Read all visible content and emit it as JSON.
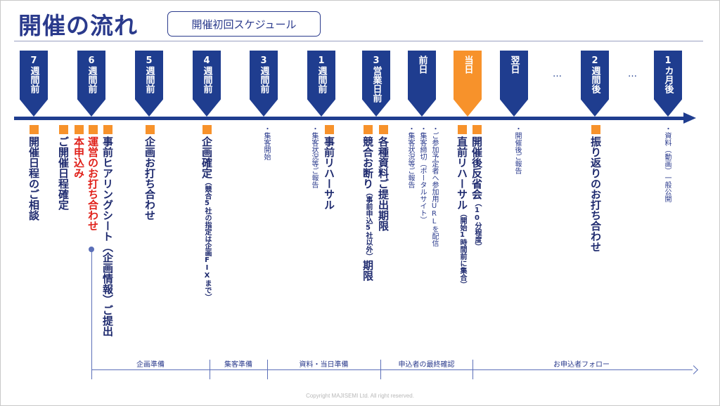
{
  "header": {
    "title": "開催の流れ",
    "subtitle": "開催初回スケジュール"
  },
  "timeline": {
    "markers": [
      {
        "label": "7週間前"
      },
      {
        "label": "6週間前"
      },
      {
        "label": "5週間前"
      },
      {
        "label": "4週間前"
      },
      {
        "label": "3週間前"
      },
      {
        "label": "1週間前"
      },
      {
        "label": "3営業日前"
      },
      {
        "label": "前日"
      },
      {
        "label": "当日"
      },
      {
        "label": "翌日"
      },
      {
        "label": "2週間後"
      },
      {
        "label": "1カ月後"
      }
    ],
    "ellipsis": "…"
  },
  "items": {
    "i1": "開催日程のご相談",
    "i2": "ご開催日程確定",
    "i3": "本申込み",
    "i4": "運営のお打ち合わせ",
    "i5": "事前ヒアリングシート（企画情報）ご提出",
    "i6": "企画お打ち合わせ",
    "i7_main": "企画確定",
    "i7_paren": "（競合5社の指定は企画FIXまで）",
    "i8": "・集客開始",
    "i9": "・集客状況等ご報告",
    "i10": "事前リハーサル",
    "i11_main": "競合お断り",
    "i11_paren": "（事前申込5社以外）",
    "i11_tail": "期限",
    "i12": "各種資料ご提出期限",
    "i13a": "・集客状況等ご報告",
    "i13b": "・集客締切（ポータルサイト）",
    "i13c": "・ご参加予定者へ参加用URLを配信",
    "i14_main": "直前リハーサル",
    "i14_paren": "（開始1時間前に集合）",
    "i15_main": "開催後反省会",
    "i15_paren": "（10分程度）",
    "i16": "・開催後ご報告",
    "i17": "振り返りのお打ち合わせ",
    "i18": "・資料（動画）一般公開"
  },
  "phases": {
    "p1": "企画準備",
    "p2": "集客準備",
    "p3": "資料・当日準備",
    "p4": "申込者の最終確認",
    "p5": "お申込者フォロー"
  },
  "footer": {
    "copyright": "Copyright MAJISEMI Ltd. All right reserved."
  },
  "colors": {
    "navy": "#1f3d8f",
    "orange": "#f7922b",
    "red": "#e0211a"
  }
}
